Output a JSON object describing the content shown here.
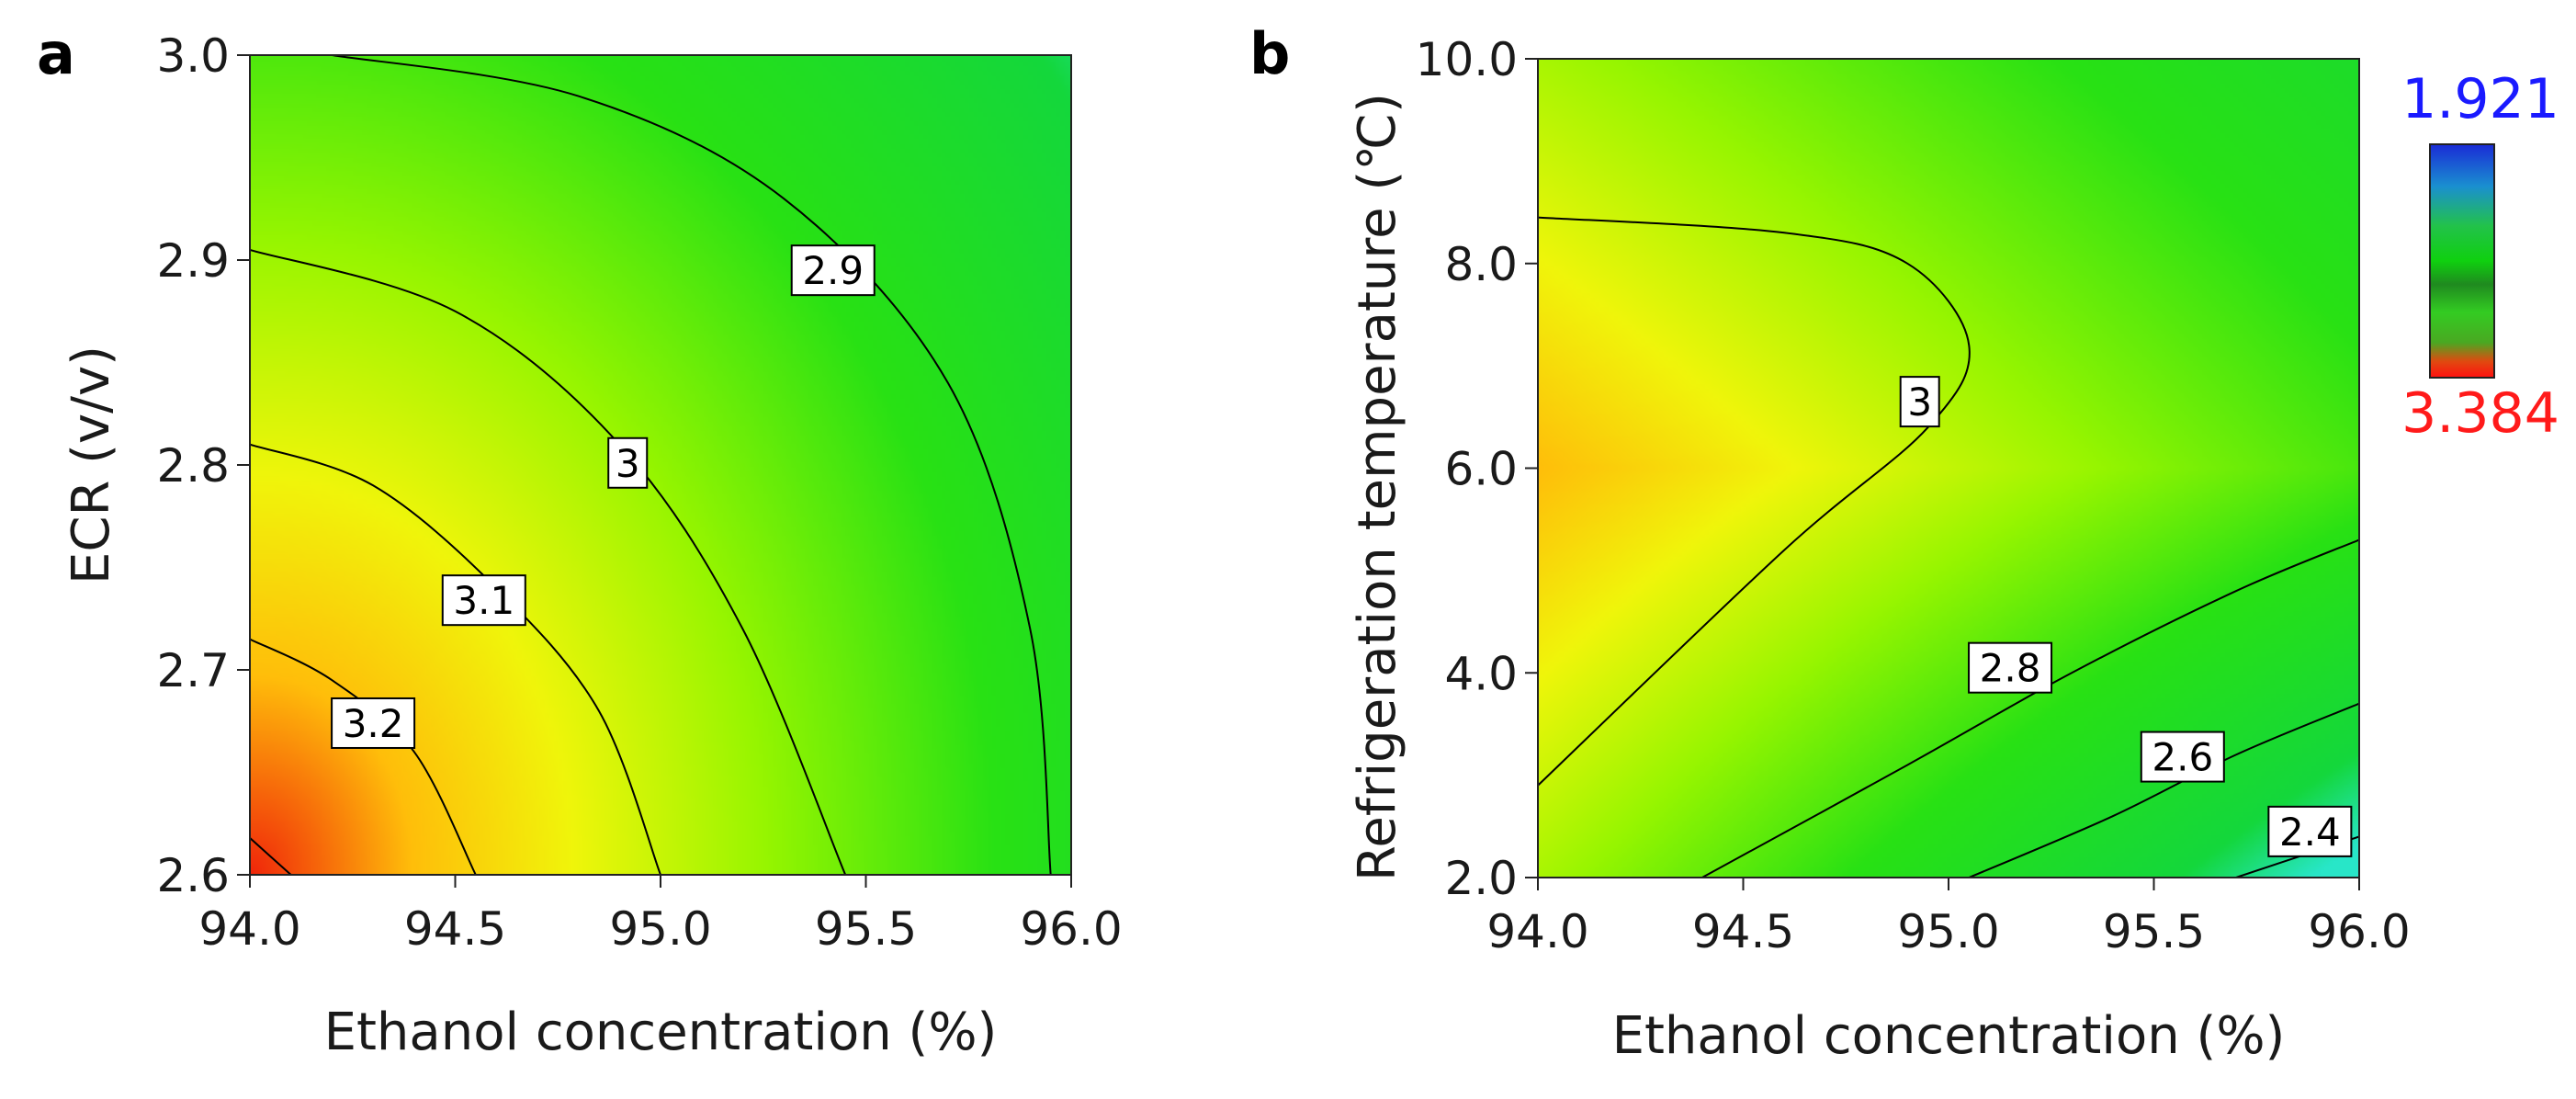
{
  "chart_data": [
    {
      "type": "heatmap",
      "panel_letter": "a",
      "xlabel": "Ethanol concentration (%)",
      "ylabel": "ECR (v/v)",
      "xlim": [
        94.0,
        96.0
      ],
      "ylim": [
        2.6,
        3.0
      ],
      "xticks": [
        "94.0",
        "94.5",
        "95.0",
        "95.5",
        "96.0"
      ],
      "yticks": [
        "2.6",
        "2.7",
        "2.8",
        "2.9",
        "3.0"
      ],
      "contour_levels": [
        {
          "label": "2.9",
          "points": [
            [
              94.2,
              3.0
            ],
            [
              94.8,
              2.98
            ],
            [
              95.3,
              2.93
            ],
            [
              95.7,
              2.84
            ],
            [
              95.9,
              2.72
            ],
            [
              95.95,
              2.6
            ]
          ],
          "label_at": [
            95.42,
            2.895
          ]
        },
        {
          "label": "3",
          "points": [
            [
              94.0,
              2.905
            ],
            [
              94.5,
              2.875
            ],
            [
              94.9,
              2.81
            ],
            [
              95.2,
              2.72
            ],
            [
              95.45,
              2.6
            ]
          ],
          "label_at": [
            94.92,
            2.801
          ]
        },
        {
          "label": "3.1",
          "points": [
            [
              94.0,
              2.81
            ],
            [
              94.3,
              2.79
            ],
            [
              94.6,
              2.74
            ],
            [
              94.85,
              2.68
            ],
            [
              95.0,
              2.6
            ]
          ],
          "label_at": [
            94.57,
            2.734
          ]
        },
        {
          "label": "3.2",
          "points": [
            [
              94.0,
              2.715
            ],
            [
              94.2,
              2.695
            ],
            [
              94.4,
              2.66
            ],
            [
              94.55,
              2.6
            ]
          ],
          "label_at": [
            94.3,
            2.674
          ]
        },
        {
          "label": "",
          "points": [
            [
              94.0,
              2.618
            ],
            [
              94.1,
              2.6
            ]
          ]
        }
      ],
      "color_field": {
        "max_at": [
          94.0,
          2.6
        ],
        "min_at": [
          96.0,
          3.0
        ]
      }
    },
    {
      "type": "heatmap",
      "panel_letter": "b",
      "xlabel": "Ethanol concentration (%)",
      "ylabel": "Refrigeration temperature (℃)",
      "xlim": [
        94.0,
        96.0
      ],
      "ylim": [
        2.0,
        10.0
      ],
      "xticks": [
        "94.0",
        "94.5",
        "95.0",
        "95.5",
        "96.0"
      ],
      "yticks": [
        "2.0",
        "4.0",
        "6.0",
        "8.0",
        "10.0"
      ],
      "contour_levels": [
        {
          "label": "3",
          "points": [
            [
              94.0,
              8.45
            ],
            [
              94.6,
              8.3
            ],
            [
              94.9,
              8.0
            ],
            [
              95.05,
              7.2
            ],
            [
              94.95,
              6.4
            ],
            [
              94.6,
              5.2
            ],
            [
              94.0,
              2.9
            ]
          ],
          "label_at": [
            94.93,
            6.65
          ]
        },
        {
          "label": "2.8",
          "points": [
            [
              94.4,
              2.0
            ],
            [
              94.9,
              3.1
            ],
            [
              95.3,
              4.0
            ],
            [
              95.7,
              4.8
            ],
            [
              96.0,
              5.3
            ]
          ],
          "label_at": [
            95.15,
            4.05
          ]
        },
        {
          "label": "2.6",
          "points": [
            [
              95.05,
              2.0
            ],
            [
              95.4,
              2.6
            ],
            [
              95.7,
              3.2
            ],
            [
              96.0,
              3.7
            ]
          ],
          "label_at": [
            95.57,
            3.18
          ]
        },
        {
          "label": "2.4",
          "points": [
            [
              95.7,
              2.0
            ],
            [
              95.85,
              2.2
            ],
            [
              96.0,
              2.4
            ]
          ],
          "label_at": [
            95.88,
            2.45
          ]
        }
      ],
      "color_field": {
        "max_at": [
          94.3,
          6.0
        ],
        "min_at": [
          96.0,
          2.0
        ]
      }
    }
  ],
  "colorbar": {
    "max_label": "1.921",
    "min_label": "3.384",
    "max_color": "#1a1aff",
    "min_color": "#ff1a1a"
  }
}
